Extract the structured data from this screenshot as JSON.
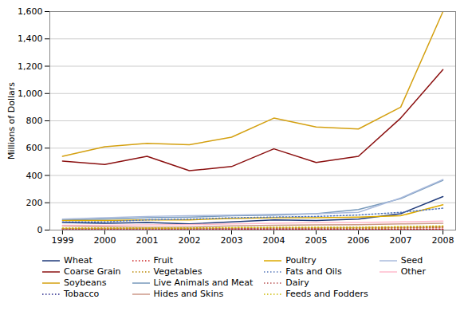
{
  "chart_data": {
    "type": "line",
    "x": [
      1999,
      2000,
      2001,
      2002,
      2003,
      2004,
      2005,
      2006,
      2007,
      2008
    ],
    "series": [
      {
        "name": "Wheat",
        "color": "#1F3A7A",
        "line_style": "solid",
        "values": [
          55,
          50,
          55,
          45,
          60,
          75,
          70,
          80,
          120,
          245
        ]
      },
      {
        "name": "Coarse Grain",
        "color": "#8B1010",
        "line_style": "solid",
        "values": [
          505,
          480,
          540,
          435,
          465,
          595,
          495,
          540,
          820,
          1175
        ]
      },
      {
        "name": "Soybeans",
        "color": "#D4A010",
        "line_style": "solid",
        "values": [
          540,
          610,
          635,
          625,
          680,
          820,
          755,
          740,
          900,
          1600
        ]
      },
      {
        "name": "Tobacco",
        "color": "#222288",
        "line_style": "dotted",
        "values": [
          5,
          5,
          5,
          5,
          5,
          5,
          5,
          5,
          5,
          5
        ]
      },
      {
        "name": "Fruit",
        "color": "#CC2222",
        "line_style": "dotted",
        "values": [
          8,
          8,
          8,
          8,
          8,
          8,
          8,
          8,
          8,
          8
        ]
      },
      {
        "name": "Vegetables",
        "color": "#BB8800",
        "line_style": "dotted",
        "values": [
          12,
          12,
          12,
          12,
          14,
          14,
          14,
          14,
          16,
          20
        ]
      },
      {
        "name": "Live Animals and Meat",
        "color": "#7799BB",
        "line_style": "solid",
        "values": [
          75,
          80,
          90,
          95,
          105,
          110,
          120,
          150,
          230,
          365
        ]
      },
      {
        "name": "Hides and Skins",
        "color": "#CC9988",
        "line_style": "solid",
        "values": [
          30,
          25,
          20,
          22,
          30,
          35,
          38,
          40,
          45,
          50
        ]
      },
      {
        "name": "Poultry",
        "color": "#DDAA00",
        "line_style": "solid",
        "values": [
          70,
          70,
          75,
          75,
          85,
          90,
          90,
          95,
          105,
          185
        ]
      },
      {
        "name": "Fats and Oils",
        "color": "#5577BB",
        "line_style": "dotted",
        "values": [
          60,
          60,
          75,
          80,
          90,
          95,
          100,
          110,
          130,
          160
        ]
      },
      {
        "name": "Dairy",
        "color": "#BB5555",
        "line_style": "dotted",
        "values": [
          10,
          10,
          10,
          10,
          12,
          15,
          15,
          18,
          20,
          22
        ]
      },
      {
        "name": "Feeds and Fodders",
        "color": "#CCBB00",
        "line_style": "dotted",
        "values": [
          15,
          15,
          15,
          15,
          18,
          20,
          20,
          20,
          25,
          30
        ]
      },
      {
        "name": "Seed",
        "color": "#AABBDD",
        "line_style": "solid",
        "values": [
          80,
          90,
          100,
          105,
          110,
          115,
          120,
          130,
          235,
          370
        ]
      },
      {
        "name": "Other",
        "color": "#FFBBCC",
        "line_style": "solid",
        "values": [
          35,
          35,
          38,
          40,
          45,
          50,
          55,
          55,
          60,
          65
        ]
      }
    ],
    "ylabel": "Millions of Dollars",
    "xlim": [
      1998.7,
      2008.3
    ],
    "xticks": [
      1999,
      2000,
      2001,
      2002,
      2003,
      2004,
      2005,
      2006,
      2007,
      2008
    ],
    "ylim": [
      0,
      1600
    ],
    "yticks": [
      0,
      200,
      400,
      600,
      800,
      {
        "value": 1000,
        "label": "1,000"
      },
      {
        "value": 1200,
        "label": "1,200"
      },
      {
        "value": 1400,
        "label": "1,400"
      },
      {
        "value": 1600,
        "label": "1,600"
      }
    ],
    "grid": true,
    "legend": "bottom"
  }
}
